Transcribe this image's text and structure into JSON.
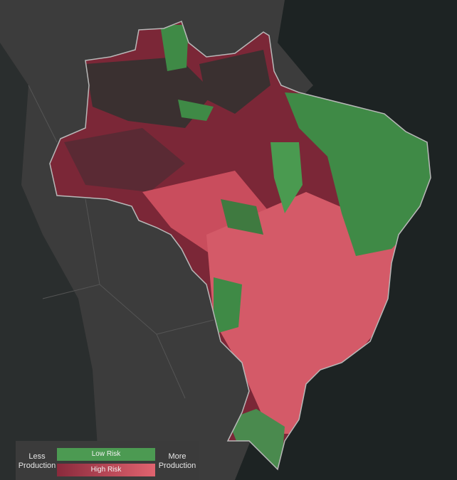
{
  "legend": {
    "left_label": "Less Production",
    "low_risk": "Low Risk",
    "high_risk": "High Risk",
    "right_label": "More Production"
  }
}
